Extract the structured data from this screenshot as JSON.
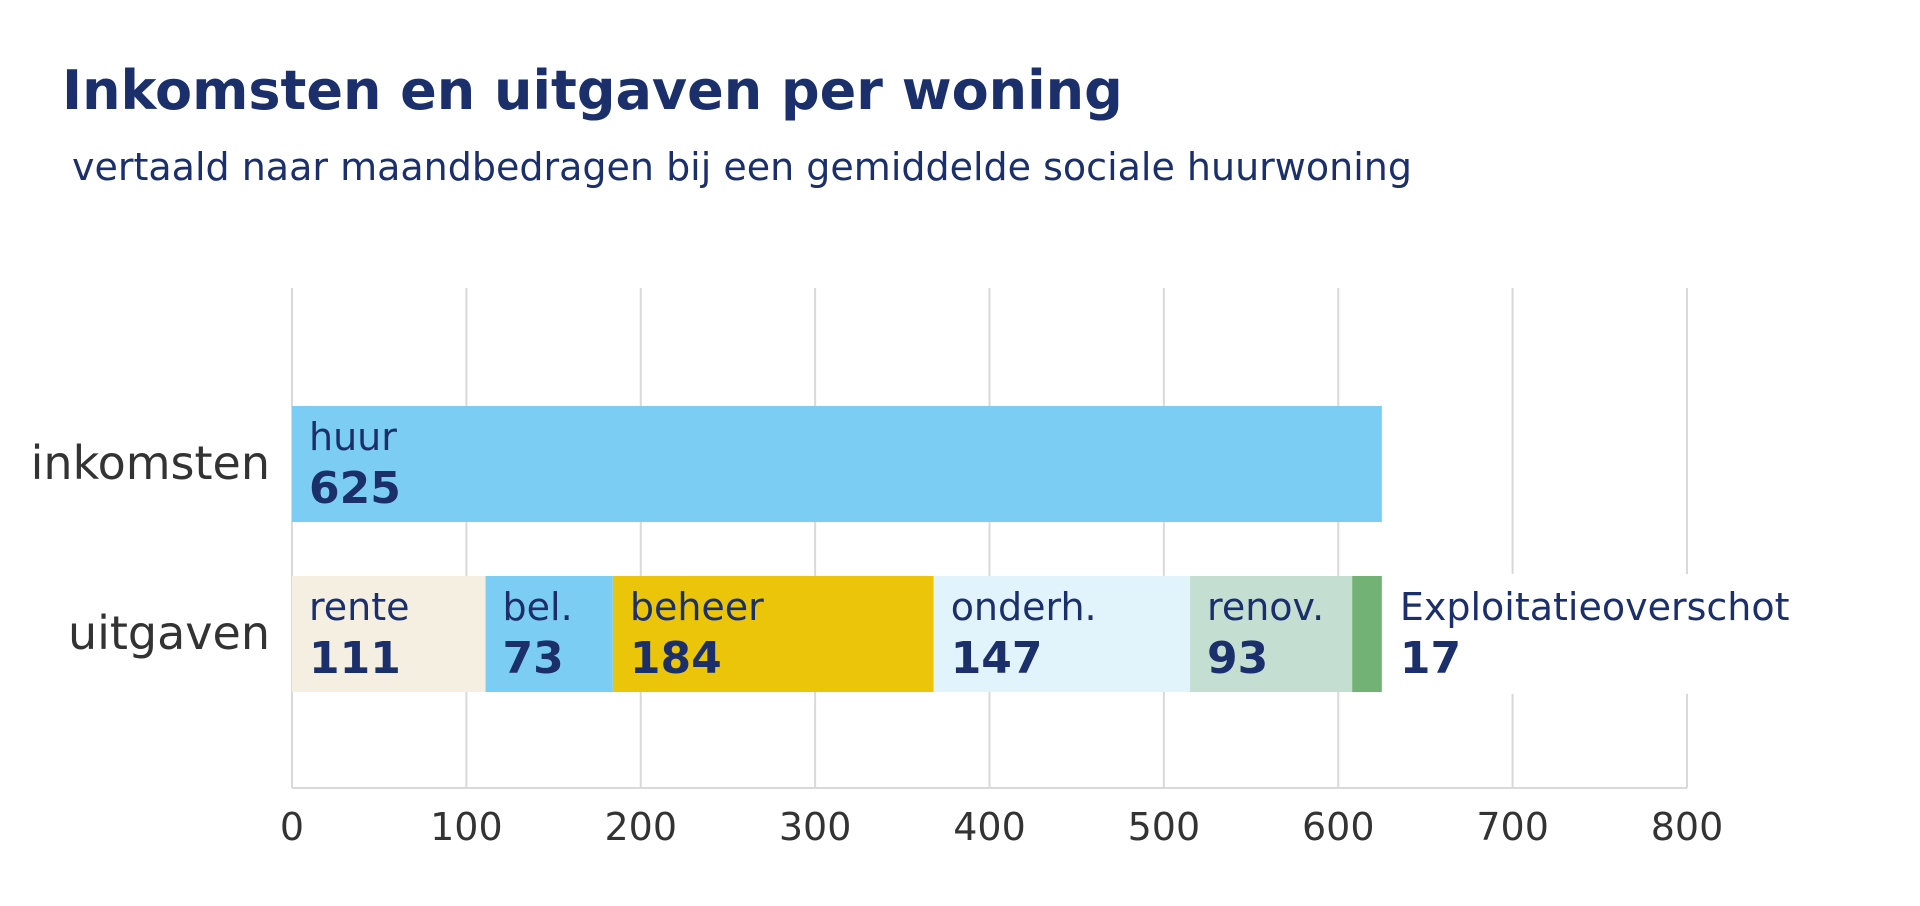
{
  "header": {
    "title": "Inkomsten en uitgaven per woning",
    "subtitle": "vertaald naar maandbedragen bij een gemiddelde sociale huurwoning"
  },
  "chart_data": {
    "type": "bar",
    "orientation": "horizontal",
    "stacked": true,
    "title": "Inkomsten en uitgaven per woning",
    "subtitle": "vertaald naar maandbedragen bij een gemiddelde sociale huurwoning",
    "categories": [
      "inkomsten",
      "uitgaven"
    ],
    "series": [
      {
        "name": "huur",
        "category": "inkomsten",
        "value": 625,
        "color": "#7ccdf4"
      },
      {
        "name": "rente",
        "category": "uitgaven",
        "value": 111,
        "color": "#f5efe2"
      },
      {
        "name": "bel.",
        "category": "uitgaven",
        "value": 73,
        "color": "#7ccdf4"
      },
      {
        "name": "beheer",
        "category": "uitgaven",
        "value": 184,
        "color": "#eac50a"
      },
      {
        "name": "onderh.",
        "category": "uitgaven",
        "value": 147,
        "color": "#e2f4fb"
      },
      {
        "name": "renov.",
        "category": "uitgaven",
        "value": 93,
        "color": "#c4dfd2"
      },
      {
        "name": "Exploitatieoverschot",
        "category": "uitgaven",
        "value": 17,
        "color": "#72b274"
      }
    ],
    "xlim": [
      0,
      800
    ],
    "xticks": [
      "0",
      "100",
      "200",
      "300",
      "400",
      "500",
      "600",
      "700",
      "800"
    ],
    "xlabel": "",
    "ylabel": "",
    "grid": true,
    "legend": "none",
    "colors": {
      "label_text": "#1b2f6b",
      "category_text": "#333333",
      "tick_text": "#333333",
      "grid": "#d9d9d9",
      "axis": "#d9d9d9"
    }
  }
}
